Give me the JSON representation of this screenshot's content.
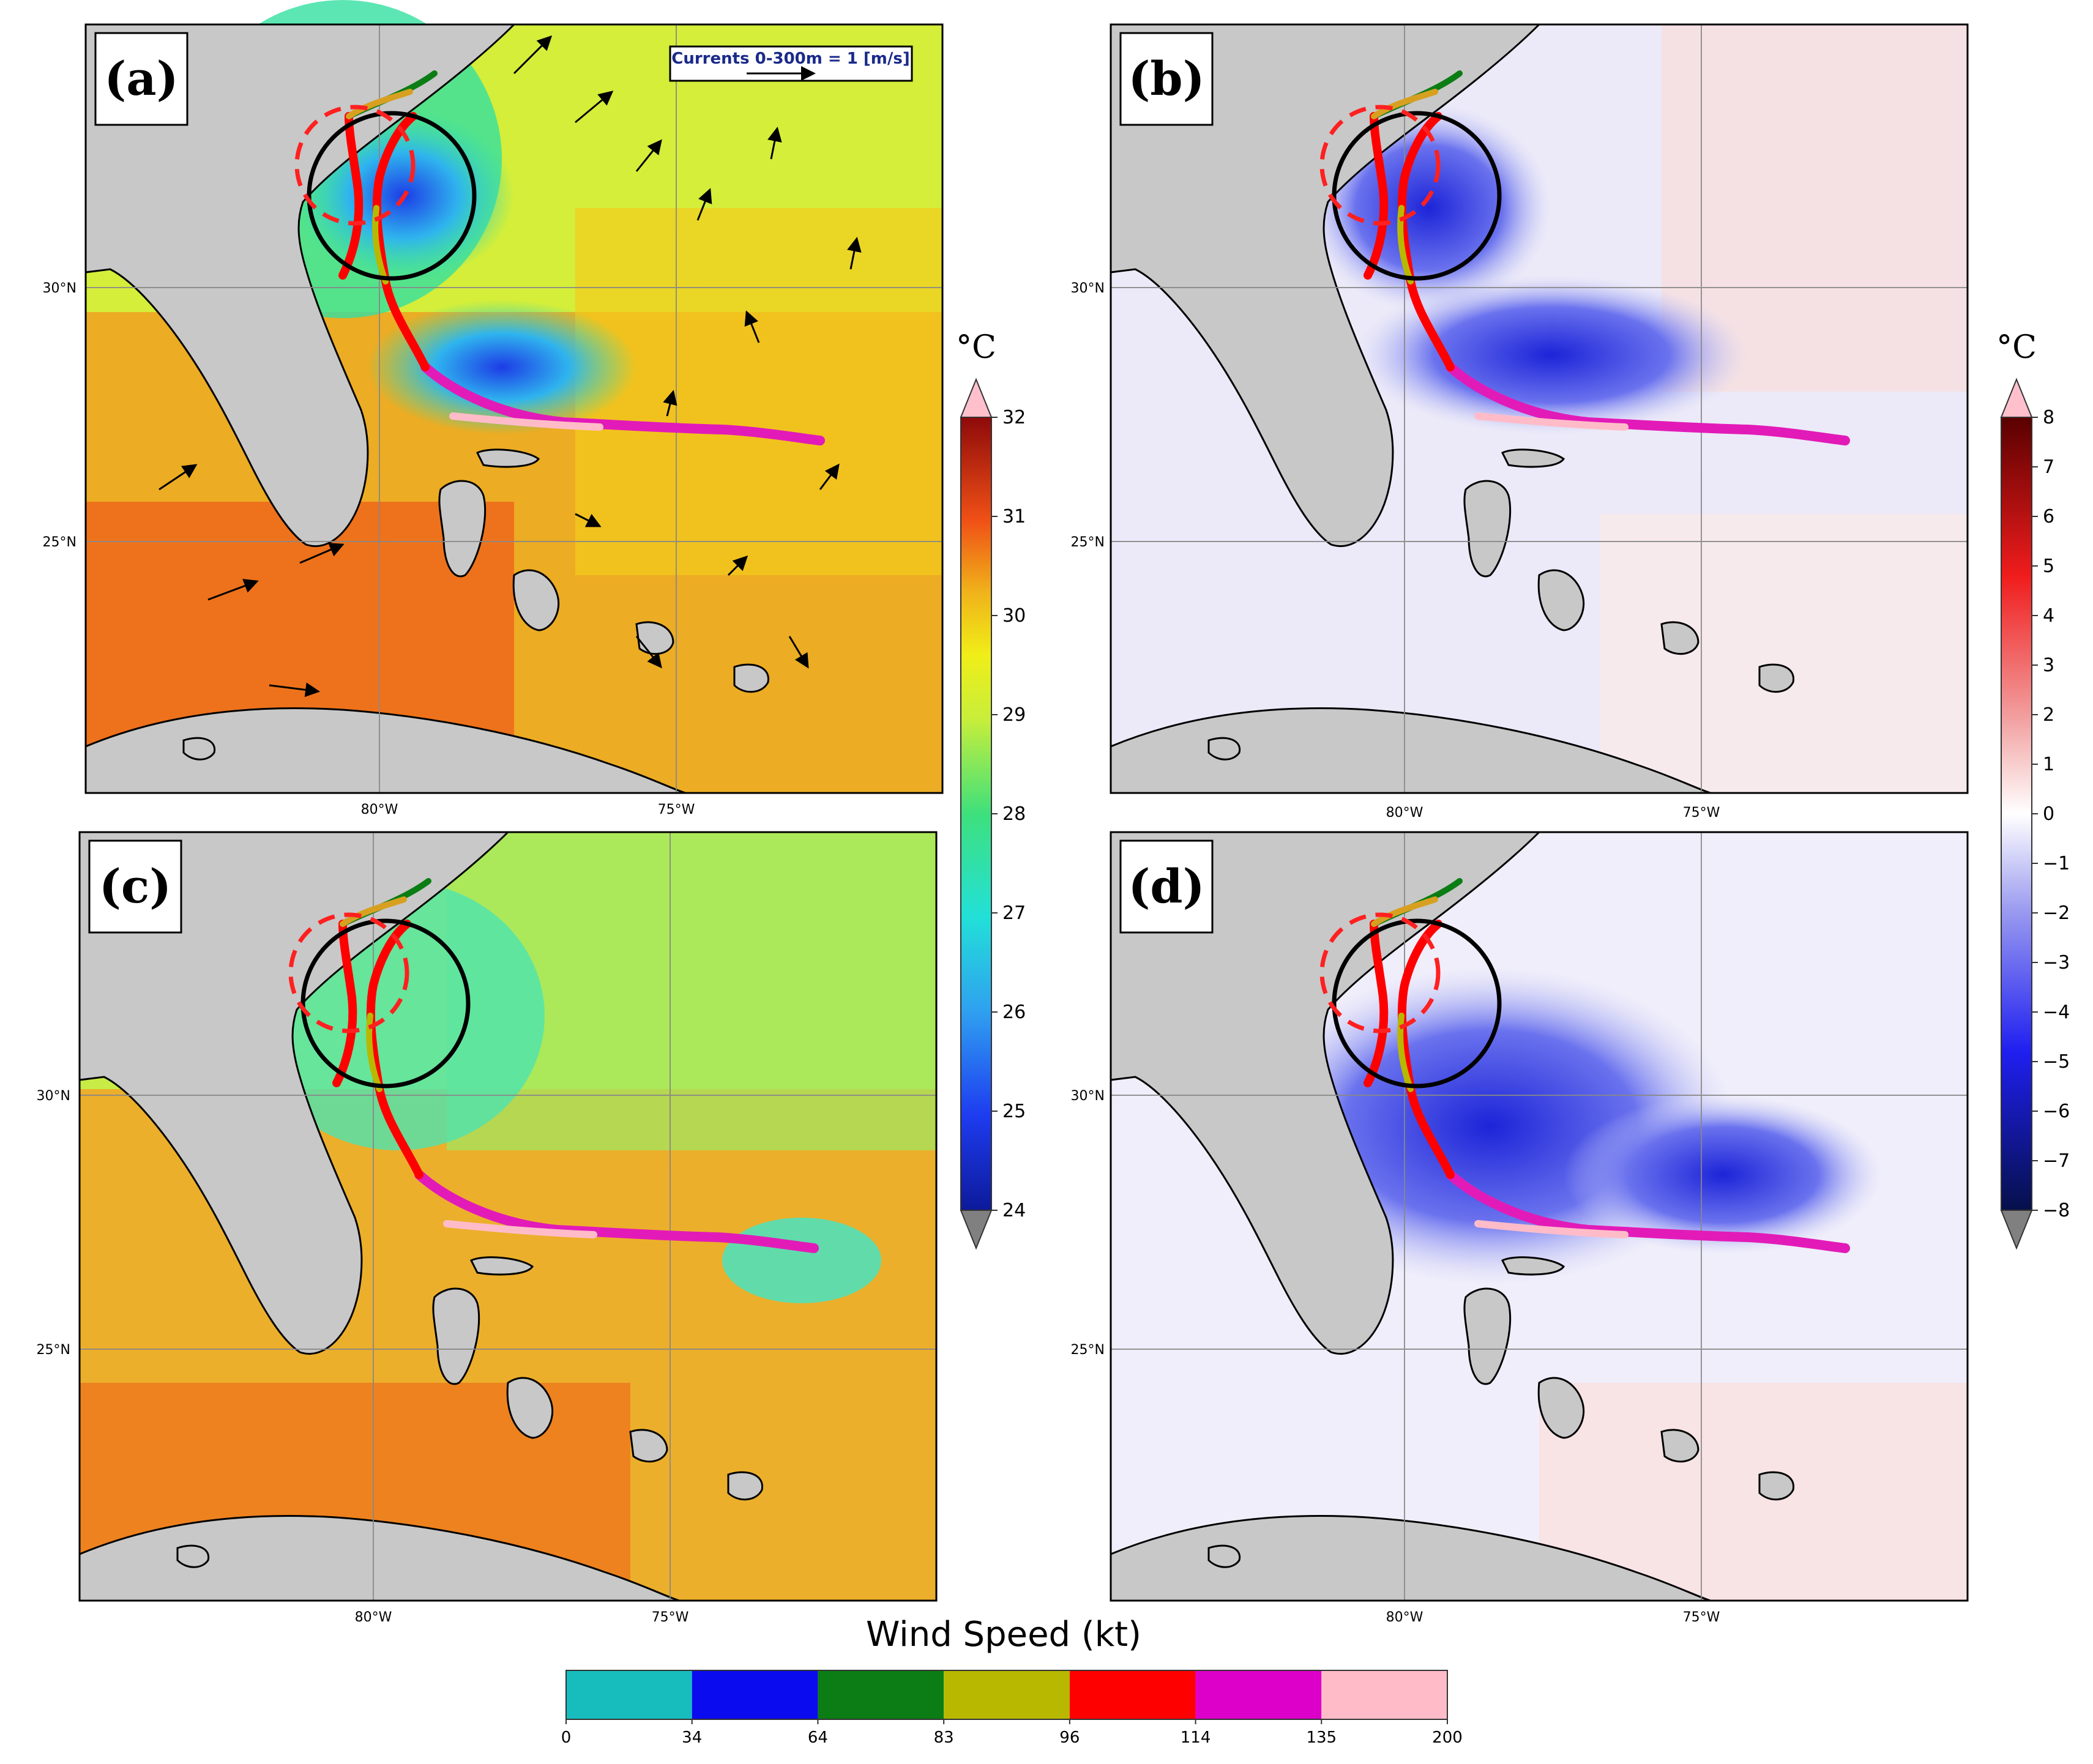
{
  "panels": {
    "a": {
      "label": "(a)",
      "field": "SST",
      "units_symbol": "°C"
    },
    "b": {
      "label": "(b)",
      "field": "SST difference"
    },
    "c": {
      "label": "(c)",
      "field": "SST"
    },
    "d": {
      "label": "(d)",
      "field": "SST difference"
    }
  },
  "axes": {
    "lon_ticks": [
      "80°W",
      "75°W"
    ],
    "lat_ticks": [
      "30°N",
      "25°N"
    ]
  },
  "current_legend": {
    "text": "Currents 0-300m =  1 [m/s]"
  },
  "sst_colorbar": {
    "unit": "°C",
    "ticks": [
      "24",
      "25",
      "26",
      "27",
      "28",
      "29",
      "30",
      "31",
      "32"
    ],
    "min": 24,
    "max": 32
  },
  "anomaly_colorbar": {
    "unit": "°C",
    "ticks": [
      "8",
      "7",
      "6",
      "5",
      "4",
      "3",
      "2",
      "1",
      "0",
      "−1",
      "−2",
      "−3",
      "−4",
      "−5",
      "−6",
      "−7",
      "−8"
    ],
    "min": -8,
    "max": 8
  },
  "wind_colorbar": {
    "title": "Wind Speed (kt)",
    "ticks": [
      "0",
      "34",
      "64",
      "83",
      "96",
      "114",
      "135",
      "200"
    ],
    "colors": [
      "#17bdbd",
      "#0b0bf0",
      "#0b7d14",
      "#b8b800",
      "#ff0000",
      "#dc00c8",
      "#ffbcc8"
    ]
  }
}
